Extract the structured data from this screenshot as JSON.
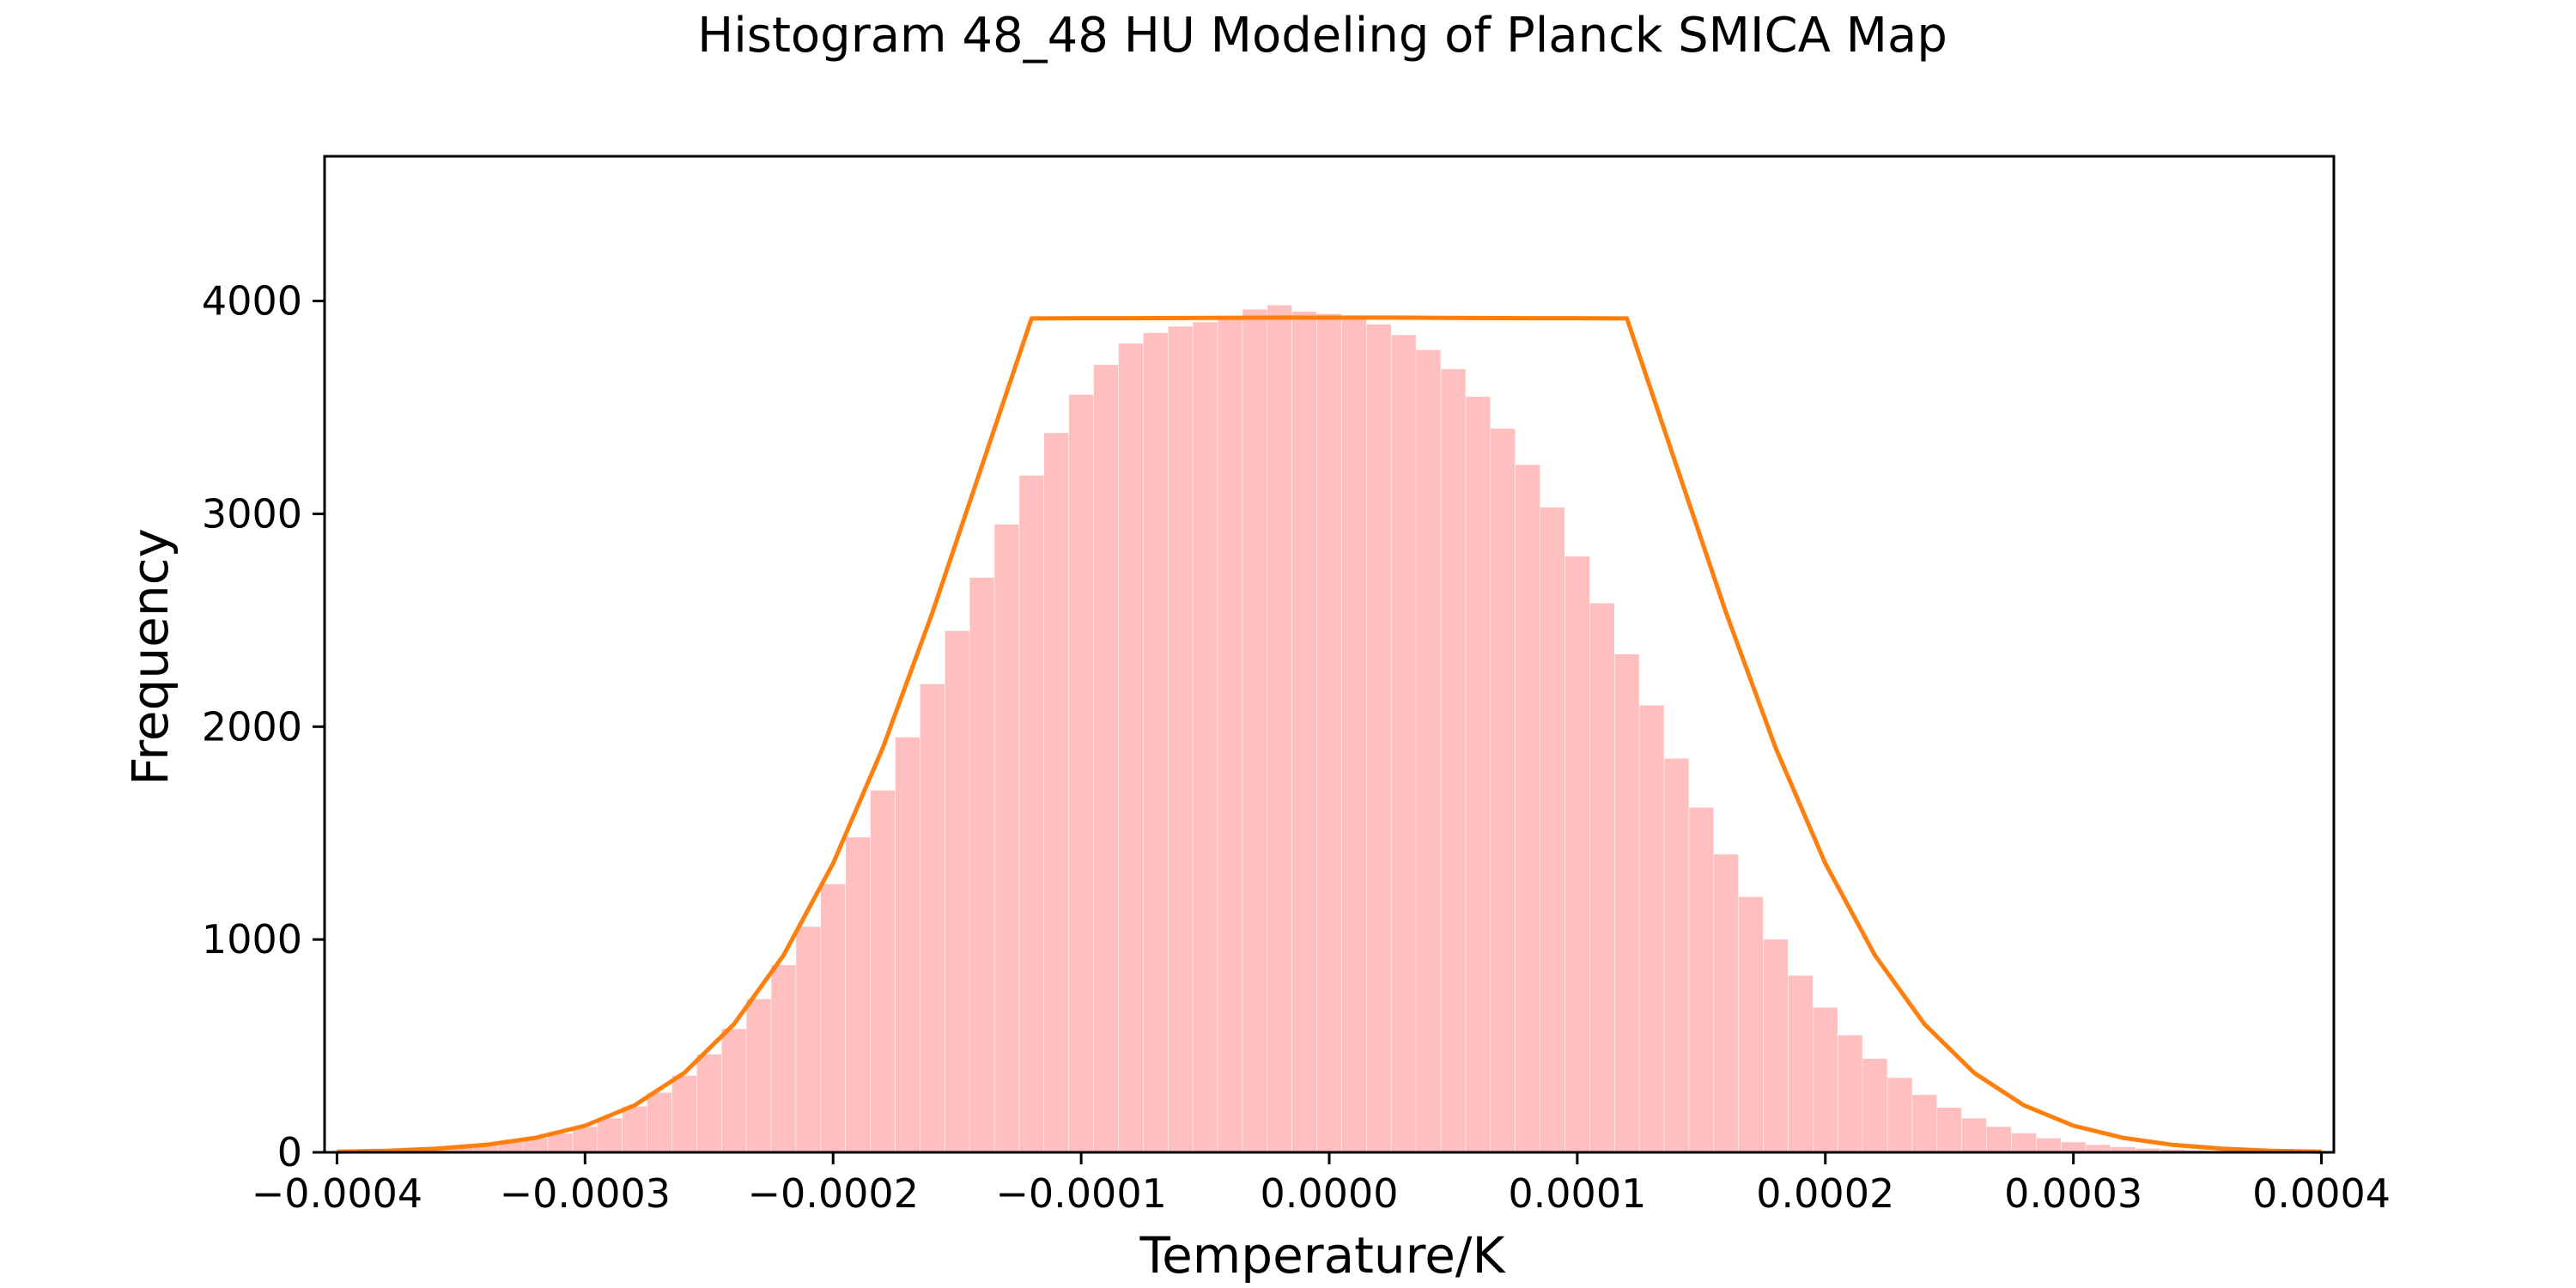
{
  "chart_data": {
    "type": "bar",
    "title": "Histogram 48_48 HU Modeling of Planck SMICA Map",
    "xlabel": "Temperature/K",
    "ylabel": "Frequency",
    "xlim": [
      -0.000405,
      0.000405
    ],
    "ylim": [
      0,
      4680
    ],
    "xticks": [
      -0.0004,
      -0.0003,
      -0.0002,
      -0.0001,
      0.0,
      0.0001,
      0.0002,
      0.0003,
      0.0004
    ],
    "xtick_labels": [
      "−0.0004",
      "−0.0003",
      "−0.0002",
      "−0.0001",
      "0.0000",
      "0.0001",
      "0.0002",
      "0.0003",
      "0.0004"
    ],
    "yticks": [
      0,
      1000,
      2000,
      3000,
      4000
    ],
    "ytick_labels": [
      "0",
      "1000",
      "2000",
      "3000",
      "4000"
    ],
    "grid": false,
    "histogram": {
      "color": "#ffbfbf",
      "bin_width": 1e-06,
      "centers": [
        -0.0004,
        -0.00039,
        -0.00038,
        -0.00037,
        -0.00036,
        -0.00035,
        -0.00034,
        -0.00033,
        -0.00032,
        -0.00031,
        -0.0003,
        -0.00029,
        -0.00028,
        -0.00027,
        -0.00026,
        -0.00025,
        -0.00024,
        -0.00023,
        -0.00022,
        -0.00021,
        -0.0002,
        -0.00019,
        -0.00018,
        -0.00017,
        -0.00016,
        -0.00015,
        -0.00014,
        -0.00013,
        -0.00012,
        -0.00011,
        -0.0001,
        -9e-05,
        -8e-05,
        -7e-05,
        -6e-05,
        -5e-05,
        -4e-05,
        -3e-05,
        -2e-05,
        -1e-05,
        0.0,
        1e-05,
        2e-05,
        3e-05,
        4e-05,
        5e-05,
        6e-05,
        7e-05,
        8e-05,
        9e-05,
        0.0001,
        0.00011,
        0.00012,
        0.00013,
        0.00014,
        0.00015,
        0.00016,
        0.00017,
        0.00018,
        0.00019,
        0.0002,
        0.00021,
        0.00022,
        0.00023,
        0.00024,
        0.00025,
        0.00026,
        0.00027,
        0.00028,
        0.00029,
        0.0003,
        0.00031,
        0.00032,
        0.00033,
        0.00034,
        0.00035,
        0.00036,
        0.00037,
        0.00038,
        0.00039,
        0.0004
      ],
      "counts": [
        4,
        6,
        9,
        13,
        18,
        25,
        35,
        48,
        66,
        89,
        120,
        160,
        215,
        280,
        360,
        460,
        580,
        720,
        880,
        1060,
        1260,
        1480,
        1700,
        1950,
        2200,
        2450,
        2700,
        2950,
        3180,
        3380,
        3560,
        3700,
        3800,
        3850,
        3880,
        3900,
        3930,
        3960,
        3980,
        3950,
        3940,
        3920,
        3890,
        3840,
        3770,
        3680,
        3550,
        3400,
        3230,
        3030,
        2800,
        2580,
        2340,
        2100,
        1850,
        1620,
        1400,
        1200,
        1000,
        830,
        680,
        550,
        440,
        350,
        270,
        210,
        160,
        120,
        90,
        66,
        48,
        35,
        25,
        18,
        13,
        9,
        6,
        4,
        3,
        2,
        1
      ]
    },
    "series": [
      {
        "type": "line",
        "color": "#ff7f0e",
        "x": [
          -0.0004,
          -0.00038,
          -0.00036,
          -0.00034,
          -0.00032,
          -0.0003,
          -0.00028,
          -0.00026,
          -0.00024,
          -0.00022,
          -0.0002,
          -0.00018,
          -0.00016,
          -0.00014,
          -0.00012,
          -0.0001,
          -8e-05,
          -6e-05,
          -4e-05,
          -2e-05,
          0.0,
          2e-05,
          4e-05,
          6e-05,
          8e-05,
          0.0001,
          0.00012,
          0.00014,
          0.00016,
          0.00018,
          0.0002,
          0.00022,
          0.00024,
          0.00026,
          0.00028,
          0.0003,
          0.00032,
          0.00034,
          0.00036,
          0.00038,
          0.0004
        ],
        "y": [
          3,
          7,
          17,
          35,
          68,
          125,
          221,
          373,
          602,
          925,
          1357,
          1899,
          2535,
          3226,
          3918,
          3919,
          3919,
          3920,
          3921,
          3922,
          3922,
          3922,
          3921,
          3920,
          3919,
          3919,
          3918,
          3226,
          2535,
          1899,
          1357,
          925,
          602,
          373,
          221,
          125,
          68,
          35,
          17,
          7,
          3
        ]
      }
    ]
  }
}
